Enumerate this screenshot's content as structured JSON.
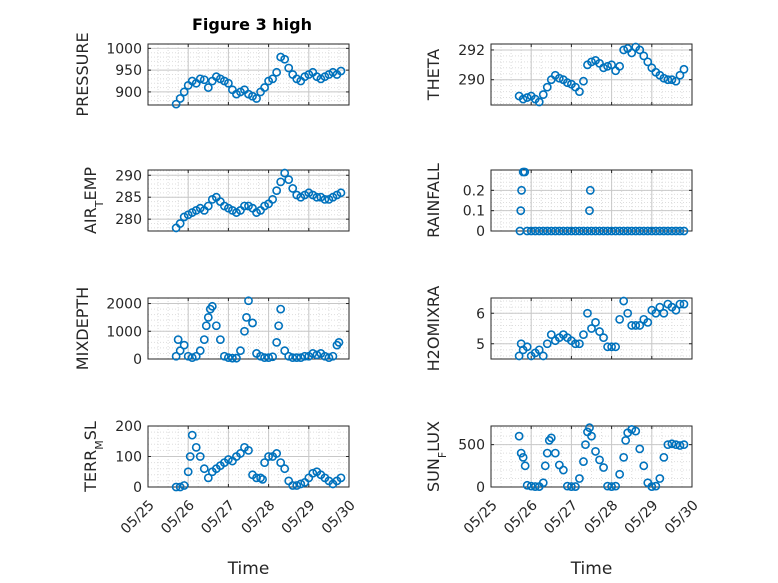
{
  "title": "Figure 3 high",
  "chart_data": [
    {
      "type": "scatter",
      "ylabel": "PRESSURE",
      "xlabel": "",
      "xlim": [
        0,
        5
      ],
      "ylim": [
        870,
        1010
      ],
      "yticks": [
        900,
        950,
        1000
      ],
      "ytick_labels": [
        "900",
        "950",
        "1000"
      ],
      "xtick_labels": [],
      "marker_color": "#0072BD",
      "x": [
        0.7,
        0.8,
        0.9,
        1.0,
        1.1,
        1.2,
        1.3,
        1.4,
        1.5,
        1.6,
        1.7,
        1.8,
        1.9,
        2.0,
        2.1,
        2.2,
        2.3,
        2.4,
        2.5,
        2.6,
        2.7,
        2.8,
        2.9,
        3.0,
        3.1,
        3.2,
        3.3,
        3.4,
        3.5,
        3.6,
        3.7,
        3.8,
        3.9,
        4.0,
        4.1,
        4.2,
        4.3,
        4.4,
        4.5,
        4.6,
        4.7,
        4.8
      ],
      "y": [
        872,
        885,
        900,
        915,
        925,
        920,
        930,
        928,
        910,
        925,
        935,
        930,
        925,
        920,
        905,
        895,
        900,
        905,
        895,
        890,
        885,
        900,
        910,
        925,
        930,
        945,
        980,
        975,
        955,
        940,
        930,
        925,
        935,
        940,
        945,
        935,
        930,
        935,
        940,
        945,
        940,
        948
      ]
    },
    {
      "type": "scatter",
      "ylabel": "THETA",
      "xlabel": "",
      "xlim": [
        0,
        5
      ],
      "ylim": [
        288.3,
        292.4
      ],
      "yticks": [
        290,
        292
      ],
      "ytick_labels": [
        "290",
        "292"
      ],
      "xtick_labels": [],
      "marker_color": "#0072BD",
      "x": [
        0.7,
        0.8,
        0.9,
        1.0,
        1.1,
        1.2,
        1.3,
        1.4,
        1.5,
        1.6,
        1.7,
        1.8,
        1.9,
        2.0,
        2.1,
        2.2,
        2.3,
        2.4,
        2.5,
        2.6,
        2.7,
        2.8,
        2.9,
        3.0,
        3.1,
        3.2,
        3.3,
        3.4,
        3.5,
        3.6,
        3.7,
        3.8,
        3.9,
        4.0,
        4.1,
        4.2,
        4.3,
        4.4,
        4.5,
        4.6,
        4.7,
        4.8
      ],
      "y": [
        288.9,
        288.7,
        288.8,
        288.9,
        288.7,
        288.5,
        289.0,
        289.5,
        290.0,
        290.3,
        290.1,
        290.0,
        289.8,
        289.7,
        289.5,
        289.2,
        289.9,
        291.0,
        291.2,
        291.3,
        291.1,
        290.8,
        290.9,
        291.0,
        290.6,
        290.9,
        292.0,
        292.1,
        291.8,
        292.2,
        292.0,
        291.6,
        291.2,
        290.8,
        290.5,
        290.3,
        290.1,
        290.0,
        290.0,
        289.9,
        290.3,
        290.7
      ]
    },
    {
      "type": "scatter",
      "ylabel": "AIR_TEMP",
      "xlabel": "",
      "xlim": [
        0,
        5
      ],
      "ylim": [
        277.3,
        291.2
      ],
      "yticks": [
        280,
        285,
        290
      ],
      "ytick_labels": [
        "280",
        "285",
        "290"
      ],
      "xtick_labels": [],
      "marker_color": "#0072BD",
      "x": [
        0.7,
        0.8,
        0.9,
        1.0,
        1.1,
        1.2,
        1.3,
        1.4,
        1.5,
        1.6,
        1.7,
        1.8,
        1.9,
        2.0,
        2.1,
        2.2,
        2.3,
        2.4,
        2.5,
        2.6,
        2.7,
        2.8,
        2.9,
        3.0,
        3.1,
        3.2,
        3.3,
        3.4,
        3.5,
        3.6,
        3.7,
        3.8,
        3.9,
        4.0,
        4.1,
        4.2,
        4.3,
        4.4,
        4.5,
        4.6,
        4.7,
        4.8
      ],
      "y": [
        278,
        279,
        280.5,
        281,
        281.5,
        282,
        282.5,
        282,
        283,
        284.5,
        285,
        284,
        283,
        282.5,
        282,
        281.5,
        282,
        283,
        283,
        282.5,
        281.5,
        282,
        283,
        283.5,
        284.5,
        286.5,
        288.5,
        290.5,
        289,
        287,
        285.5,
        285,
        285.5,
        286,
        285.5,
        285,
        285,
        284.5,
        284.5,
        285,
        285.5,
        286
      ]
    },
    {
      "type": "scatter",
      "ylabel": "RAINFALL",
      "xlabel": "",
      "xlim": [
        0,
        5
      ],
      "ylim": [
        0,
        0.3
      ],
      "yticks": [
        0,
        0.1,
        0.2
      ],
      "ytick_labels": [
        "0",
        "0.1",
        "0.2"
      ],
      "xtick_labels": [],
      "marker_color": "#0072BD",
      "x": [
        0.72,
        0.74,
        0.76,
        0.8,
        0.84,
        0.9,
        1.0,
        1.1,
        1.2,
        1.3,
        1.4,
        1.5,
        1.6,
        1.7,
        1.8,
        1.9,
        2.0,
        2.1,
        2.2,
        2.3,
        2.4,
        2.45,
        2.47,
        2.5,
        2.6,
        2.7,
        2.8,
        2.9,
        3.0,
        3.1,
        3.2,
        3.3,
        3.4,
        3.5,
        3.6,
        3.7,
        3.8,
        3.9,
        4.0,
        4.1,
        4.2,
        4.3,
        4.4,
        4.5,
        4.6,
        4.7,
        4.8
      ],
      "y": [
        0,
        0.1,
        0.2,
        0.29,
        0.29,
        0,
        0,
        0,
        0,
        0,
        0,
        0,
        0,
        0,
        0,
        0,
        0,
        0,
        0,
        0,
        0,
        0.1,
        0.2,
        0,
        0,
        0,
        0,
        0,
        0,
        0,
        0,
        0,
        0,
        0,
        0,
        0,
        0,
        0,
        0,
        0,
        0,
        0,
        0,
        0,
        0,
        0,
        0
      ]
    },
    {
      "type": "scatter",
      "ylabel": "MIXDEPTH",
      "xlabel": "",
      "xlim": [
        0,
        5
      ],
      "ylim": [
        0,
        2200
      ],
      "yticks": [
        0,
        1000,
        2000
      ],
      "ytick_labels": [
        "0",
        "1000",
        "2000"
      ],
      "xtick_labels": [],
      "marker_color": "#0072BD",
      "x": [
        0.7,
        0.75,
        0.8,
        0.9,
        1.0,
        1.1,
        1.2,
        1.3,
        1.4,
        1.45,
        1.5,
        1.55,
        1.6,
        1.7,
        1.8,
        1.9,
        2.0,
        2.1,
        2.2,
        2.3,
        2.4,
        2.45,
        2.5,
        2.6,
        2.7,
        2.8,
        2.9,
        3.0,
        3.1,
        3.2,
        3.25,
        3.3,
        3.4,
        3.5,
        3.6,
        3.7,
        3.8,
        3.9,
        4.0,
        4.1,
        4.2,
        4.3,
        4.4,
        4.5,
        4.6,
        4.7,
        4.75
      ],
      "y": [
        100,
        700,
        300,
        500,
        100,
        50,
        100,
        300,
        700,
        1200,
        1500,
        1800,
        1900,
        1200,
        700,
        100,
        50,
        30,
        30,
        300,
        1000,
        1500,
        2100,
        1300,
        200,
        100,
        50,
        50,
        80,
        600,
        1200,
        1800,
        300,
        100,
        50,
        50,
        50,
        100,
        100,
        200,
        150,
        200,
        100,
        50,
        100,
        500,
        600
      ]
    },
    {
      "type": "scatter",
      "ylabel": "H2OMIXRA",
      "xlabel": "",
      "xlim": [
        0,
        5
      ],
      "ylim": [
        4.5,
        6.5
      ],
      "yticks": [
        5,
        6
      ],
      "ytick_labels": [
        "5",
        "6"
      ],
      "xtick_labels": [],
      "marker_color": "#0072BD",
      "x": [
        0.7,
        0.75,
        0.8,
        0.9,
        1.0,
        1.1,
        1.2,
        1.3,
        1.4,
        1.5,
        1.6,
        1.7,
        1.8,
        1.9,
        2.0,
        2.1,
        2.2,
        2.3,
        2.4,
        2.5,
        2.6,
        2.7,
        2.8,
        2.9,
        3.0,
        3.1,
        3.2,
        3.3,
        3.4,
        3.5,
        3.6,
        3.7,
        3.8,
        3.9,
        4.0,
        4.1,
        4.2,
        4.3,
        4.4,
        4.5,
        4.6,
        4.7,
        4.8
      ],
      "y": [
        4.6,
        5.0,
        4.8,
        4.9,
        4.6,
        4.7,
        4.8,
        4.6,
        5.0,
        5.3,
        5.1,
        5.2,
        5.3,
        5.2,
        5.1,
        5.0,
        5.0,
        5.3,
        6.0,
        5.5,
        5.7,
        5.4,
        5.2,
        4.9,
        4.9,
        4.9,
        5.8,
        6.4,
        6.0,
        5.6,
        5.6,
        5.6,
        5.8,
        5.7,
        6.1,
        6.0,
        6.2,
        6.0,
        6.3,
        6.2,
        6.1,
        6.3,
        6.3
      ]
    },
    {
      "type": "scatter",
      "ylabel": "TERR_MSL",
      "xlabel": "Time",
      "xlim": [
        0,
        5
      ],
      "ylim": [
        0,
        200
      ],
      "yticks": [
        0,
        100,
        200
      ],
      "ytick_labels": [
        "0",
        "100",
        "200"
      ],
      "xtick_labels": [
        "05/25",
        "05/26",
        "05/27",
        "05/28",
        "05/29",
        "05/30"
      ],
      "marker_color": "#0072BD",
      "x": [
        0.7,
        0.8,
        0.9,
        1.0,
        1.05,
        1.1,
        1.2,
        1.3,
        1.4,
        1.5,
        1.6,
        1.7,
        1.8,
        1.9,
        2.0,
        2.1,
        2.2,
        2.3,
        2.4,
        2.5,
        2.6,
        2.7,
        2.8,
        2.85,
        2.9,
        3.0,
        3.1,
        3.2,
        3.3,
        3.4,
        3.5,
        3.6,
        3.7,
        3.8,
        3.9,
        4.0,
        4.1,
        4.2,
        4.3,
        4.4,
        4.5,
        4.6,
        4.7,
        4.8
      ],
      "y": [
        0,
        0,
        5,
        50,
        100,
        170,
        130,
        100,
        60,
        30,
        50,
        60,
        70,
        80,
        90,
        85,
        100,
        110,
        130,
        120,
        40,
        30,
        30,
        25,
        80,
        100,
        100,
        110,
        80,
        60,
        20,
        5,
        5,
        10,
        15,
        30,
        45,
        50,
        40,
        30,
        20,
        10,
        20,
        30
      ]
    },
    {
      "type": "scatter",
      "ylabel": "SUN_FLUX",
      "xlabel": "Time",
      "xlim": [
        0,
        5
      ],
      "ylim": [
        0,
        720
      ],
      "yticks": [
        0,
        500
      ],
      "ytick_labels": [
        "0",
        "500"
      ],
      "xtick_labels": [
        "05/25",
        "05/26",
        "05/27",
        "05/28",
        "05/29",
        "05/30"
      ],
      "marker_color": "#0072BD",
      "x": [
        0.7,
        0.75,
        0.8,
        0.85,
        0.9,
        1.0,
        1.1,
        1.2,
        1.3,
        1.35,
        1.4,
        1.45,
        1.5,
        1.6,
        1.7,
        1.8,
        1.9,
        2.0,
        2.1,
        2.2,
        2.3,
        2.35,
        2.4,
        2.45,
        2.5,
        2.6,
        2.7,
        2.8,
        2.9,
        3.0,
        3.1,
        3.2,
        3.3,
        3.35,
        3.4,
        3.5,
        3.6,
        3.7,
        3.8,
        3.9,
        4.0,
        4.1,
        4.2,
        4.3,
        4.4,
        4.5,
        4.6,
        4.7,
        4.8
      ],
      "y": [
        600,
        400,
        350,
        250,
        20,
        10,
        5,
        5,
        50,
        250,
        400,
        550,
        580,
        400,
        260,
        200,
        10,
        5,
        5,
        100,
        300,
        500,
        650,
        700,
        600,
        420,
        320,
        230,
        10,
        5,
        10,
        150,
        350,
        550,
        640,
        680,
        660,
        450,
        250,
        50,
        5,
        10,
        100,
        350,
        500,
        510,
        500,
        490,
        500
      ]
    }
  ]
}
